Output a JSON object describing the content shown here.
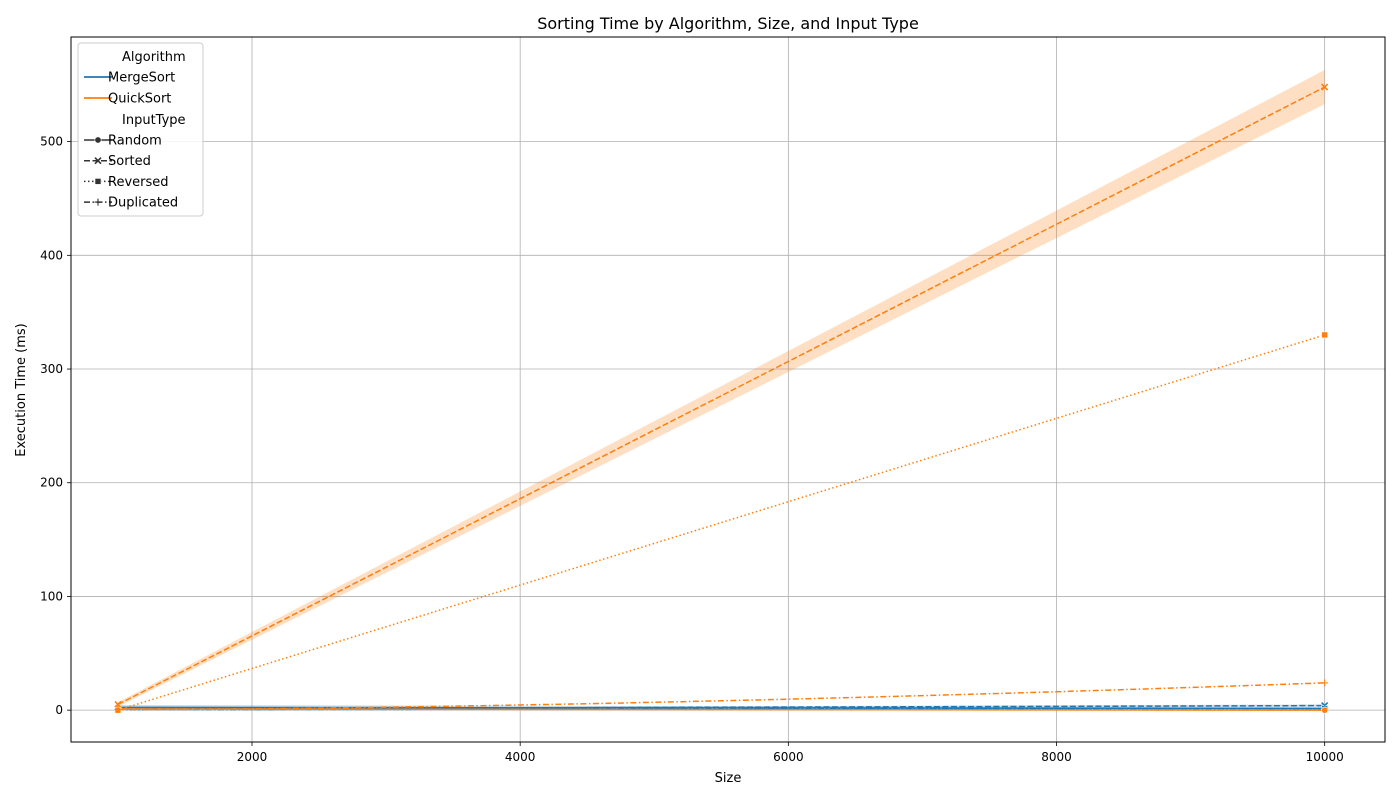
{
  "chart_data": {
    "type": "line",
    "title": "Sorting Time by Algorithm, Size, and Input Type",
    "xlabel": "Size",
    "ylabel": "Execution Time (ms)",
    "xlim": [
      650,
      10450
    ],
    "ylim": [
      -28,
      592
    ],
    "x_ticks": [
      2000,
      4000,
      6000,
      8000,
      10000
    ],
    "y_ticks": [
      0,
      100,
      200,
      300,
      400,
      500
    ],
    "grid": true,
    "legend_position": "top-left",
    "legend": {
      "algorithm_title": "Algorithm",
      "algorithms": [
        {
          "name": "MergeSort",
          "color": "#1f77b4"
        },
        {
          "name": "QuickSort",
          "color": "#ff7f0e"
        }
      ],
      "input_title": "InputType",
      "input_types": [
        {
          "name": "Random",
          "dash": "solid",
          "marker": "circle"
        },
        {
          "name": "Sorted",
          "dash": "dashed",
          "marker": "x"
        },
        {
          "name": "Reversed",
          "dash": "dotted",
          "marker": "square"
        },
        {
          "name": "Duplicated",
          "dash": "dashdot",
          "marker": "plus"
        }
      ]
    },
    "series": [
      {
        "algorithm": "MergeSort",
        "input": "Random",
        "x": [
          1000,
          10000
        ],
        "y": [
          2.5,
          1.5
        ],
        "ci": [
          [
            0.5,
            4.5
          ],
          [
            0.5,
            2.5
          ]
        ]
      },
      {
        "algorithm": "MergeSort",
        "input": "Sorted",
        "x": [
          1000,
          10000
        ],
        "y": [
          1,
          4
        ],
        "ci": [
          [
            0.3,
            1.8
          ],
          [
            3,
            5
          ]
        ]
      },
      {
        "algorithm": "MergeSort",
        "input": "Reversed",
        "x": [
          1000,
          10000
        ],
        "y": [
          0.5,
          1.5
        ]
      },
      {
        "algorithm": "MergeSort",
        "input": "Duplicated",
        "x": [
          1000,
          10000
        ],
        "y": [
          0.5,
          1.5
        ]
      },
      {
        "algorithm": "QuickSort",
        "input": "Random",
        "x": [
          1000,
          10000
        ],
        "y": [
          1,
          0
        ]
      },
      {
        "algorithm": "QuickSort",
        "input": "Sorted",
        "x": [
          1000,
          10000
        ],
        "y": [
          5,
          548
        ],
        "ci": [
          [
            3,
            7
          ],
          [
            533,
            563
          ]
        ]
      },
      {
        "algorithm": "QuickSort",
        "input": "Reversed",
        "x": [
          1000,
          10000
        ],
        "y": [
          0,
          330
        ]
      },
      {
        "algorithm": "QuickSort",
        "input": "Duplicated",
        "x": [
          1000,
          10000
        ],
        "y": [
          0.5,
          24
        ],
        "curve": 1.6
      }
    ]
  }
}
